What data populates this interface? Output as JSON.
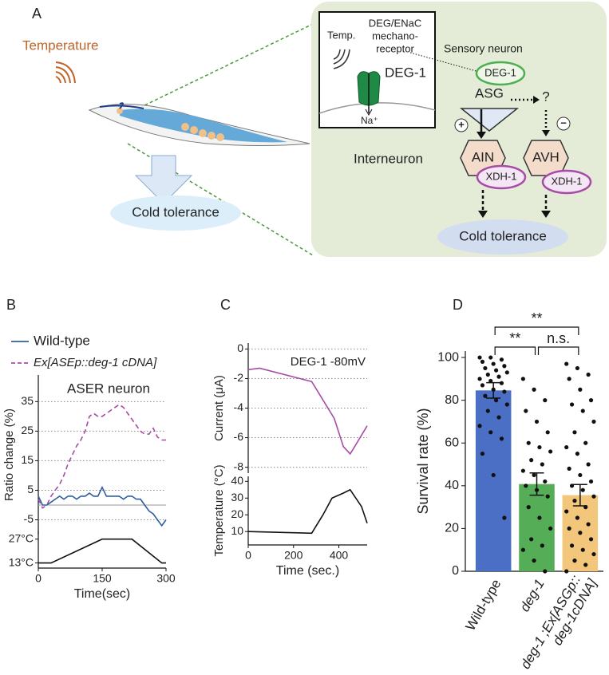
{
  "panels": [
    "B",
    "C",
    "D"
  ],
  "diagram": {
    "label": "A",
    "stimulus": "Temperature",
    "outcome_left": "Cold tolerance",
    "inset": {
      "stimulus": "Temp.",
      "receptor": [
        "DEG/ENaC",
        "mechano-",
        "receptor"
      ],
      "channel": "DEG-1",
      "ion": "Na⁺"
    },
    "sensory_label": "Sensory neuron",
    "sensory_neuron": "ASG",
    "sensory_gene": "DEG-1",
    "unknown": "?",
    "activation": "+",
    "inhibition": "−",
    "inter_label": "Interneuron",
    "interneurons": [
      "AIN",
      "AVH"
    ],
    "inter_genes": [
      "XDH-1",
      "XDH-1"
    ],
    "outcome_right": "Cold tolerance"
  },
  "chart_data": [
    {
      "type": "line",
      "title": "ASER neuron",
      "y_label": "Ratio change (%)",
      "x": [
        0,
        10,
        20,
        30,
        40,
        50,
        60,
        70,
        80,
        90,
        100,
        110,
        120,
        130,
        140,
        150,
        160,
        170,
        180,
        190,
        200,
        210,
        220,
        230,
        240,
        250,
        260,
        270,
        280,
        290,
        300
      ],
      "xlim": [
        0,
        300
      ],
      "ylim": [
        -10,
        44
      ],
      "yticks": [
        -5,
        5,
        15,
        25,
        35
      ],
      "grid": true,
      "reference_line": 0,
      "series": [
        {
          "name": "Wild-type",
          "color": "#2f5f9e",
          "dash": false,
          "values": [
            3,
            0,
            0,
            1,
            2,
            3,
            2,
            3,
            3,
            2,
            3,
            3,
            4,
            3,
            3,
            6,
            3,
            3,
            3,
            3,
            2,
            3,
            3,
            2,
            2,
            0,
            -2,
            -3,
            -5,
            -7,
            -5
          ]
        },
        {
          "name": "Ex[ASEp::deg-1 cDNA]",
          "color": "#a64ca6",
          "dash": true,
          "values": [
            2,
            -1,
            0,
            3,
            5,
            7,
            10,
            14,
            17,
            20,
            22,
            25,
            30,
            31,
            30,
            30,
            31,
            32,
            33,
            34,
            33,
            31,
            29,
            27,
            25,
            24,
            24,
            26,
            23,
            22,
            22
          ]
        }
      ]
    },
    {
      "type": "line",
      "x_label": "Time(sec)",
      "x": [
        0,
        30,
        150,
        220,
        290,
        300
      ],
      "xlim": [
        0,
        300
      ],
      "xticks": [
        0,
        150,
        300
      ],
      "ylim": [
        10,
        32
      ],
      "yticks": [
        {
          "value": 13,
          "label": "13°C"
        },
        {
          "value": 27,
          "label": "27°C"
        }
      ],
      "series": [
        {
          "color": "#111111",
          "values": [
            13,
            13,
            27,
            27,
            13,
            13
          ]
        }
      ]
    },
    {
      "type": "line",
      "annotation": "DEG-1 -80mV",
      "y_label": "Current (μA)",
      "x": [
        0,
        50,
        280,
        380,
        420,
        450,
        470,
        525
      ],
      "xlim": [
        0,
        525
      ],
      "ylim": [
        -8.4,
        0.4
      ],
      "yticks": [
        0,
        -2,
        -4,
        -6,
        -8
      ],
      "grid": true,
      "series": [
        {
          "color": "#a64ca6",
          "values": [
            -1.4,
            -1.3,
            -2.2,
            -4.7,
            -6.6,
            -7.1,
            -6.6,
            -5.2
          ]
        }
      ]
    },
    {
      "type": "line",
      "x_label": "Time (sec.)",
      "y_label": "Temperature (°C)",
      "x": [
        0,
        280,
        330,
        370,
        420,
        450,
        500,
        525
      ],
      "xlim": [
        0,
        525
      ],
      "xticks": [
        0,
        200,
        400
      ],
      "ylim": [
        2,
        43
      ],
      "yticks": [
        10,
        20,
        30,
        40
      ],
      "series": [
        {
          "color": "#111111",
          "values": [
            10,
            9,
            20,
            30,
            33,
            35,
            25,
            15
          ]
        }
      ]
    },
    {
      "type": "bar",
      "y_label": "Survival rate (%)",
      "categories": [
        "Wild-type",
        "deg-1",
        "deg-1 ;Ex[ASGp:: deg-1cDNA]"
      ],
      "values": [
        84.6,
        40.8,
        35.6
      ],
      "errors": [
        3.6,
        5.2,
        5.0
      ],
      "colors": [
        "#4a6fc4",
        "#56ad57",
        "#f2c77c"
      ],
      "ylim": [
        0,
        103
      ],
      "yticks": [
        0,
        20,
        40,
        60,
        80,
        100
      ],
      "points": [
        [
          100,
          100,
          99,
          98,
          97,
          96,
          95,
          94,
          93,
          92,
          91,
          90,
          89,
          88,
          87,
          85,
          84,
          82,
          80,
          78,
          75,
          72,
          68,
          65,
          62,
          55,
          45,
          25
        ],
        [
          90,
          85,
          80,
          75,
          70,
          65,
          60,
          58,
          56,
          52,
          50,
          47,
          45,
          42,
          40,
          38,
          35,
          30,
          25,
          20,
          15,
          12,
          10,
          5,
          0
        ],
        [
          97,
          95,
          92,
          90,
          85,
          80,
          78,
          75,
          70,
          65,
          60,
          58,
          55,
          50,
          48,
          45,
          42,
          40,
          38,
          35,
          33,
          30,
          28,
          25,
          22,
          20,
          18,
          15,
          12,
          10,
          8,
          5,
          3,
          0
        ]
      ],
      "significance": [
        {
          "from": 0,
          "to": 2,
          "label": "**"
        },
        {
          "from": 0,
          "to": 1,
          "label": "**"
        },
        {
          "from": 1,
          "to": 2,
          "label": "n.s."
        }
      ]
    }
  ]
}
